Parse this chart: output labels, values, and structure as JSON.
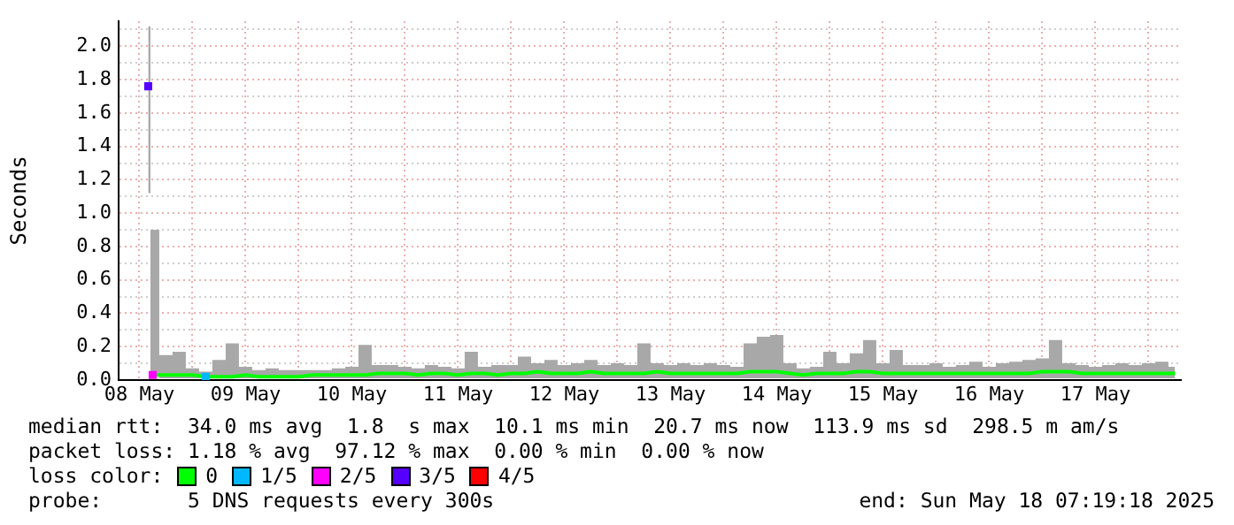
{
  "chart_data": {
    "type": "line",
    "ylabel": "Seconds",
    "legend_title": "loss color:",
    "legend": "bottom",
    "grid": true,
    "xlim": [
      "2025-05-08T07:19",
      "2025-05-18T07:19"
    ],
    "xticks": [
      {
        "value": "2025-05-08T12:00",
        "label": "08 May"
      },
      {
        "value": "2025-05-09T00:00",
        "label": null
      },
      {
        "value": "2025-05-09T12:00",
        "label": "09 May"
      },
      {
        "value": "2025-05-10T00:00",
        "label": null
      },
      {
        "value": "2025-05-10T12:00",
        "label": "10 May"
      },
      {
        "value": "2025-05-11T00:00",
        "label": null
      },
      {
        "value": "2025-05-11T12:00",
        "label": "11 May"
      },
      {
        "value": "2025-05-12T00:00",
        "label": null
      },
      {
        "value": "2025-05-12T12:00",
        "label": "12 May"
      },
      {
        "value": "2025-05-13T00:00",
        "label": null
      },
      {
        "value": "2025-05-13T12:00",
        "label": "13 May"
      },
      {
        "value": "2025-05-14T00:00",
        "label": null
      },
      {
        "value": "2025-05-14T12:00",
        "label": "14 May"
      },
      {
        "value": "2025-05-15T00:00",
        "label": null
      },
      {
        "value": "2025-05-15T12:00",
        "label": "15 May"
      },
      {
        "value": "2025-05-16T00:00",
        "label": null
      },
      {
        "value": "2025-05-16T12:00",
        "label": "16 May"
      },
      {
        "value": "2025-05-17T00:00",
        "label": null
      },
      {
        "value": "2025-05-17T12:00",
        "label": "17 May"
      },
      {
        "value": "2025-05-18T00:00",
        "label": null
      }
    ],
    "ylim": [
      0,
      2.15
    ],
    "yticks": [
      {
        "value": 0,
        "label": "0.0"
      },
      {
        "value": 0.1,
        "label": null
      },
      0.2,
      {
        "value": 0.3,
        "label": null
      },
      0.4,
      {
        "value": 0.5,
        "label": null
      },
      0.6,
      {
        "value": 0.7,
        "label": null
      },
      0.8,
      {
        "value": 0.9,
        "label": null
      },
      {
        "value": 1,
        "label": "1.0"
      },
      {
        "value": 1.1,
        "label": null
      },
      1.2,
      {
        "value": 1.3,
        "label": null
      },
      1.4,
      {
        "value": 1.5,
        "label": null
      },
      1.6,
      {
        "value": 1.7,
        "label": null
      },
      1.8,
      {
        "value": 1.9,
        "label": null
      },
      {
        "value": 2,
        "label": "2.0"
      },
      {
        "value": 2.1,
        "label": null
      }
    ],
    "annotations": [
      "median rtt:  34.0 ms avg  1.8  s max  10.1 ms min  20.7 ms now  113.9 ms sd  298.5 m am/s",
      "packet loss: 1.18 % avg  97.12 % max  0.00 % min  0.00 % now",
      "probe:       5 DNS requests every 300s",
      "end: Sun May 18 07:19:18 2025"
    ],
    "series": [
      {
        "name": "0",
        "type": "line",
        "marker": "none",
        "color": "#00ff00",
        "x": [
          "2025-05-08T14:00",
          "2025-05-08T15:00",
          "2025-05-08T18:00",
          "2025-05-08T21:00",
          "2025-05-09T00:00",
          "2025-05-09T03:00",
          "2025-05-09T06:00",
          "2025-05-09T09:00",
          "2025-05-09T12:00",
          "2025-05-09T15:00",
          "2025-05-09T18:00",
          "2025-05-09T21:00",
          "2025-05-10T00:00",
          "2025-05-10T03:00",
          "2025-05-10T06:00",
          "2025-05-10T09:00",
          "2025-05-10T12:00",
          "2025-05-10T15:00",
          "2025-05-10T18:00",
          "2025-05-10T21:00",
          "2025-05-11T00:00",
          "2025-05-11T03:00",
          "2025-05-11T06:00",
          "2025-05-11T09:00",
          "2025-05-11T12:00",
          "2025-05-11T15:00",
          "2025-05-11T18:00",
          "2025-05-11T21:00",
          "2025-05-12T00:00",
          "2025-05-12T03:00",
          "2025-05-12T06:00",
          "2025-05-12T09:00",
          "2025-05-12T12:00",
          "2025-05-12T15:00",
          "2025-05-12T18:00",
          "2025-05-12T21:00",
          "2025-05-13T00:00",
          "2025-05-13T03:00",
          "2025-05-13T06:00",
          "2025-05-13T09:00",
          "2025-05-13T12:00",
          "2025-05-13T15:00",
          "2025-05-13T18:00",
          "2025-05-13T21:00",
          "2025-05-14T00:00",
          "2025-05-14T03:00",
          "2025-05-14T06:00",
          "2025-05-14T09:00",
          "2025-05-14T12:00",
          "2025-05-14T15:00",
          "2025-05-14T18:00",
          "2025-05-14T21:00",
          "2025-05-15T00:00",
          "2025-05-15T03:00",
          "2025-05-15T06:00",
          "2025-05-15T09:00",
          "2025-05-15T12:00",
          "2025-05-15T15:00",
          "2025-05-15T18:00",
          "2025-05-15T21:00",
          "2025-05-16T00:00",
          "2025-05-16T03:00",
          "2025-05-16T06:00",
          "2025-05-16T09:00",
          "2025-05-16T12:00",
          "2025-05-16T15:00",
          "2025-05-16T18:00",
          "2025-05-16T21:00",
          "2025-05-17T00:00",
          "2025-05-17T03:00",
          "2025-05-17T06:00",
          "2025-05-17T09:00",
          "2025-05-17T12:00",
          "2025-05-17T15:00",
          "2025-05-17T18:00",
          "2025-05-17T21:00",
          "2025-05-18T00:00",
          "2025-05-18T03:00",
          "2025-05-18T06:00"
        ],
        "values": [
          null,
          0.03,
          0.03,
          0.03,
          0.03,
          0.02,
          0.02,
          0.02,
          0.03,
          0.02,
          0.02,
          0.02,
          0.02,
          0.03,
          0.03,
          0.03,
          0.03,
          0.03,
          0.04,
          0.04,
          0.04,
          0.03,
          0.04,
          0.04,
          0.03,
          0.04,
          0.04,
          0.03,
          0.04,
          0.04,
          0.05,
          0.04,
          0.04,
          0.04,
          0.05,
          0.04,
          0.04,
          0.04,
          0.04,
          0.05,
          0.04,
          0.04,
          0.04,
          0.04,
          0.04,
          0.04,
          0.05,
          0.05,
          0.05,
          0.04,
          0.03,
          0.04,
          0.04,
          0.04,
          0.05,
          0.05,
          0.04,
          0.04,
          0.04,
          0.04,
          0.04,
          0.04,
          0.04,
          0.04,
          0.04,
          0.04,
          0.04,
          0.04,
          0.05,
          0.05,
          0.05,
          0.04,
          0.04,
          0.04,
          0.04,
          0.04,
          0.04,
          0.04,
          0.04
        ],
        "lower": [
          1.12,
          0.02,
          0.01,
          0.01,
          0.01,
          0.01,
          0.01,
          0.01,
          0.01,
          0.01,
          0.01,
          0.01,
          0.01,
          0.01,
          0.01,
          0.01,
          0.01,
          0.01,
          0.01,
          0.01,
          0.01,
          0.01,
          0.01,
          0.01,
          0.01,
          0.01,
          0.01,
          0.01,
          0.01,
          0.01,
          0.01,
          0.01,
          0.01,
          0.01,
          0.01,
          0.01,
          0.01,
          0.01,
          0.01,
          0.01,
          0.01,
          0.01,
          0.01,
          0.01,
          0.01,
          0.01,
          0.01,
          0.01,
          0.01,
          0.01,
          0.01,
          0.01,
          0.01,
          0.01,
          0.01,
          0.01,
          0.01,
          0.01,
          0.01,
          0.01,
          0.01,
          0.01,
          0.01,
          0.01,
          0.01,
          0.01,
          0.01,
          0.01,
          0.01,
          0.01,
          0.01,
          0.01,
          0.01,
          0.01,
          0.01,
          0.01,
          0.01,
          0.01,
          0.01
        ],
        "upper": [
          2.12,
          0.9,
          0.15,
          0.17,
          0.07,
          0.05,
          0.12,
          0.22,
          0.08,
          0.06,
          0.07,
          0.06,
          0.06,
          0.06,
          0.06,
          0.07,
          0.08,
          0.21,
          0.09,
          0.09,
          0.08,
          0.07,
          0.09,
          0.08,
          0.07,
          0.17,
          0.08,
          0.09,
          0.09,
          0.14,
          0.1,
          0.12,
          0.09,
          0.1,
          0.12,
          0.09,
          0.1,
          0.09,
          0.22,
          0.1,
          0.09,
          0.1,
          0.09,
          0.1,
          0.09,
          0.08,
          0.22,
          0.26,
          0.27,
          0.1,
          0.07,
          0.08,
          0.17,
          0.1,
          0.16,
          0.24,
          0.1,
          0.18,
          0.09,
          0.09,
          0.1,
          0.08,
          0.09,
          0.11,
          0.08,
          0.1,
          0.11,
          0.12,
          0.13,
          0.24,
          0.1,
          0.09,
          0.08,
          0.09,
          0.1,
          0.09,
          0.1,
          0.11,
          0.08
        ]
      },
      {
        "name": "1/5",
        "type": "scatter",
        "marker": "square",
        "color": "#00b8ff",
        "x": [
          "2025-05-09T03:00"
        ],
        "values": [
          0.02
        ]
      },
      {
        "name": "2/5",
        "type": "scatter",
        "marker": "square",
        "color": "#ff00ff",
        "x": [
          "2025-05-08T15:00"
        ],
        "values": [
          0.03
        ]
      },
      {
        "name": "3/5",
        "type": "scatter",
        "marker": "square",
        "color": "#5500ff",
        "x": [
          "2025-05-08T14:00"
        ],
        "values": [
          1.76
        ]
      },
      {
        "name": "4/5",
        "type": "scatter",
        "marker": "square",
        "color": "#ff0000"
      }
    ]
  }
}
